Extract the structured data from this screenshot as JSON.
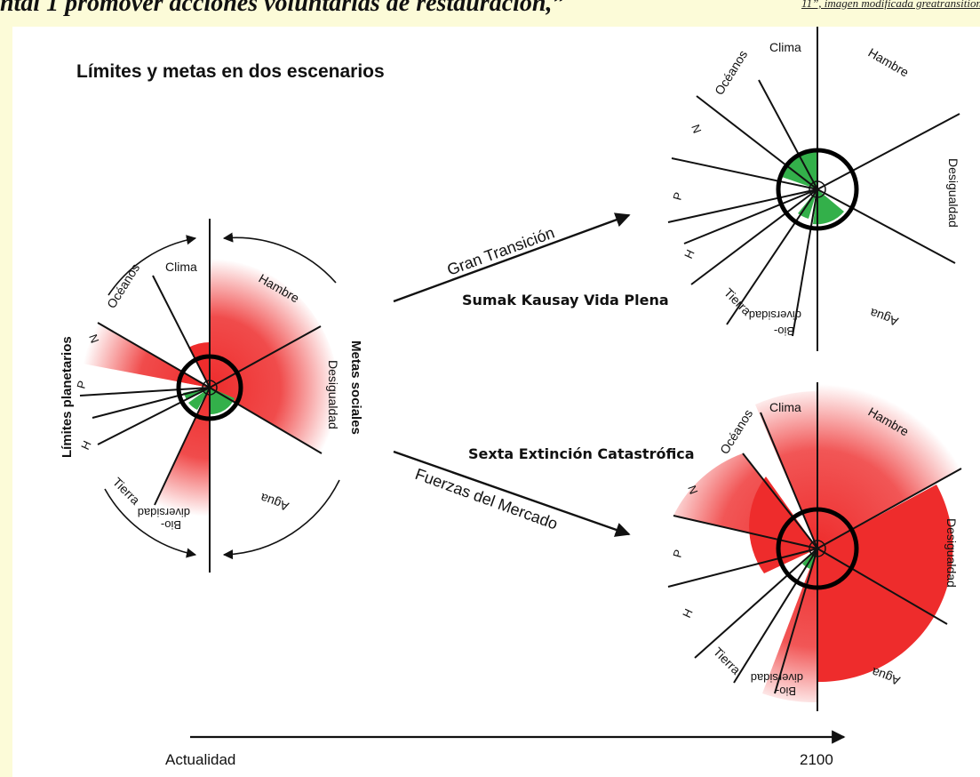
{
  "header": {
    "text": "ntal 1 promover acciones voluntarias de restauración,”",
    "note": "11”, imagen modificada greatransition"
  },
  "title": "Límites y metas en dos escenarios",
  "left_group_label": "Límites planetarios",
  "right_group_label": "Metas sociales",
  "scenario_top_arrow": "Gran Transición",
  "scenario_top_name": "Sumak Kausay Vida Plena",
  "scenario_bottom_arrow": "Fuerzas del Mercado",
  "scenario_bottom_name": "Sexta Extinción Catastrófica",
  "timeline": {
    "start": "Actualidad",
    "end": "2100"
  },
  "labels": {
    "clima": "Clima",
    "oceanos": "Océanos",
    "n": "N",
    "p": "P",
    "h": "H",
    "tierra": "Tierra",
    "bio": "Bio-",
    "diversidad": "diversidad",
    "agua": "Agua",
    "desigualdad": "Desigualdad",
    "hambre": "Hambre"
  },
  "colors": {
    "red": "#ee2c2c",
    "green": "#33b04a",
    "ring": "#000000"
  }
}
